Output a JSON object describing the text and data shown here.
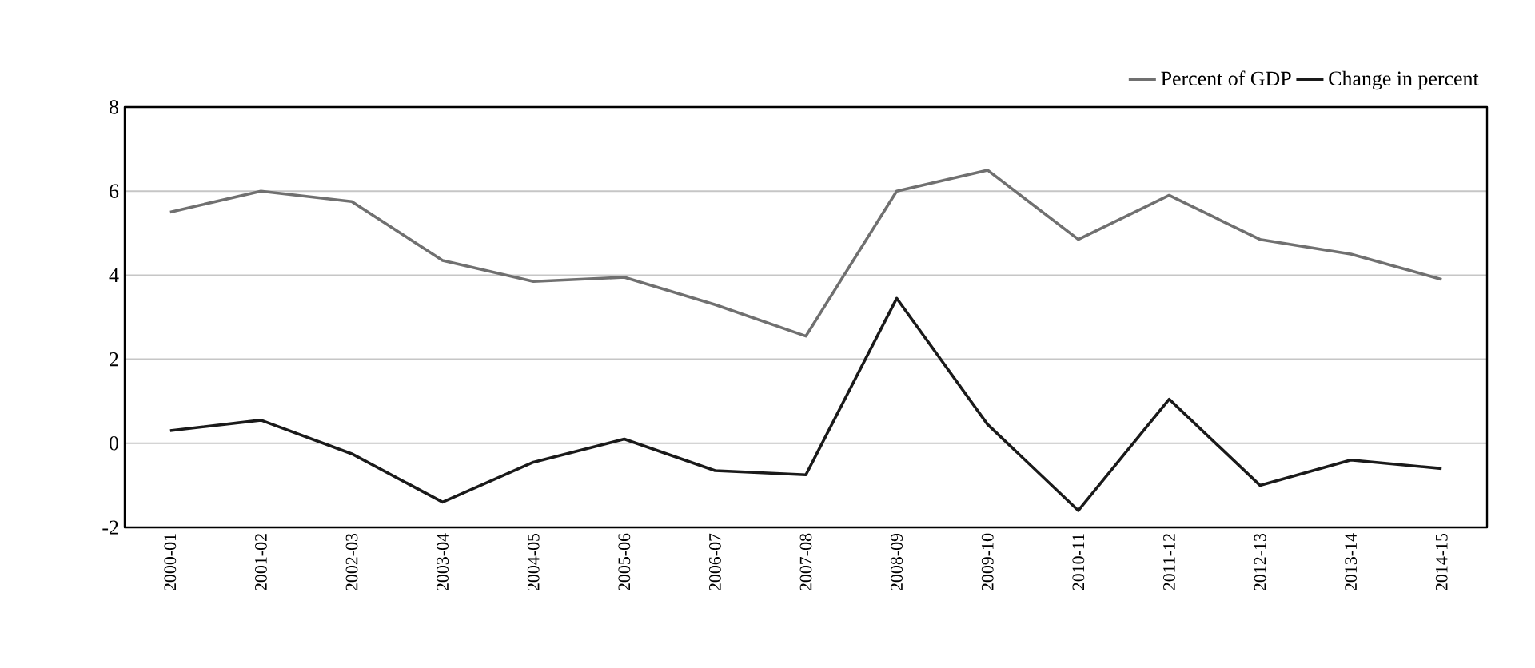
{
  "chart_data": {
    "type": "line",
    "categories": [
      "2000-01",
      "2001-02",
      "2002-03",
      "2003-04",
      "2004-05",
      "2005-06",
      "2006-07",
      "2007-08",
      "2008-09",
      "2009-10",
      "2010-11",
      "2011-12",
      "2012-13",
      "2013-14",
      "2014-15"
    ],
    "series": [
      {
        "name": "Percent of GDP",
        "color": "#707070",
        "values": [
          5.5,
          6.0,
          5.75,
          4.35,
          3.85,
          3.95,
          3.3,
          2.55,
          6.0,
          6.5,
          4.85,
          5.9,
          4.85,
          4.5,
          3.9
        ]
      },
      {
        "name": "Change in percent",
        "color": "#1a1a1a",
        "values": [
          0.3,
          0.55,
          -0.25,
          -1.4,
          -0.45,
          0.1,
          -0.65,
          -0.75,
          3.45,
          0.45,
          -1.6,
          1.05,
          -1.0,
          -0.4,
          -0.6
        ]
      }
    ],
    "ylim": [
      -2,
      8
    ],
    "yticks": [
      -2,
      0,
      2,
      4,
      6,
      8
    ],
    "grid": "y",
    "legend": "top right",
    "marker": "none",
    "line_style": "solid"
  }
}
